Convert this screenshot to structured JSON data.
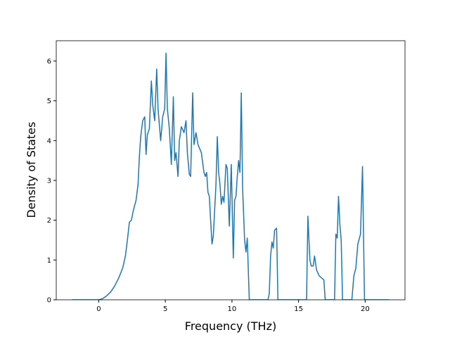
{
  "chart_data": {
    "type": "line",
    "x_label": "Frequency (THz)",
    "y_label": "Density of States",
    "x": [
      -2,
      0,
      0.3,
      0.6,
      0.9,
      1.2,
      1.5,
      1.8,
      2.0,
      2.15,
      2.3,
      2.45,
      2.6,
      2.8,
      2.95,
      3.05,
      3.15,
      3.3,
      3.45,
      3.55,
      3.65,
      3.8,
      3.95,
      4.05,
      4.2,
      4.35,
      4.45,
      4.65,
      4.8,
      4.95,
      5.05,
      5.15,
      5.3,
      5.45,
      5.6,
      5.7,
      5.8,
      5.95,
      6.05,
      6.2,
      6.4,
      6.55,
      6.65,
      6.8,
      6.9,
      7.05,
      7.15,
      7.3,
      7.45,
      7.7,
      7.9,
      8.0,
      8.1,
      8.2,
      8.3,
      8.5,
      8.6,
      8.8,
      8.9,
      9.0,
      9.1,
      9.2,
      9.3,
      9.4,
      9.55,
      9.65,
      9.8,
      9.95,
      10.1,
      10.2,
      10.3,
      10.4,
      10.5,
      10.6,
      10.7,
      10.8,
      10.95,
      11.05,
      11.15,
      11.3,
      12.7,
      12.8,
      12.9,
      13.0,
      13.1,
      13.2,
      13.35,
      13.45,
      15.4,
      15.6,
      15.7,
      15.85,
      15.95,
      16.1,
      16.2,
      16.35,
      16.55,
      16.9,
      17.0,
      17.7,
      17.8,
      17.9,
      18.0,
      18.1,
      18.2,
      18.3,
      19.0,
      19.15,
      19.3,
      19.45,
      19.65,
      19.8,
      19.95,
      21.8
    ],
    "series": [
      {
        "name": "DOS",
        "color": "#1f77b4",
        "values": [
          0,
          0,
          0.03,
          0.1,
          0.2,
          0.35,
          0.55,
          0.8,
          1.1,
          1.5,
          1.95,
          2.0,
          2.25,
          2.5,
          2.9,
          3.6,
          4.1,
          4.5,
          4.6,
          3.65,
          4.15,
          4.3,
          5.5,
          4.9,
          4.5,
          5.8,
          4.8,
          4.0,
          4.6,
          4.8,
          6.2,
          4.8,
          4.3,
          3.4,
          5.1,
          3.5,
          3.7,
          3.1,
          4.0,
          4.35,
          4.2,
          4.5,
          3.7,
          3.15,
          3.1,
          5.2,
          3.9,
          4.2,
          3.9,
          3.7,
          3.2,
          3.1,
          3.2,
          2.7,
          2.6,
          1.4,
          1.6,
          2.9,
          4.1,
          3.2,
          2.9,
          2.4,
          2.6,
          2.45,
          3.4,
          3.3,
          1.85,
          3.4,
          1.05,
          2.5,
          2.6,
          3.1,
          3.5,
          3.2,
          5.2,
          2.8,
          1.5,
          1.2,
          1.55,
          0,
          0,
          0.15,
          1.1,
          1.45,
          1.3,
          1.75,
          1.8,
          0,
          0,
          0,
          2.1,
          1.0,
          0.85,
          0.85,
          1.1,
          0.75,
          0.6,
          0.5,
          0,
          0,
          1.65,
          1.55,
          2.6,
          1.9,
          1.5,
          0,
          0,
          0.6,
          0.8,
          1.4,
          1.65,
          3.35,
          0,
          0
        ]
      }
    ],
    "xlim": [
      -3.19,
      22.99
    ],
    "xticks": [
      0,
      5,
      10,
      15,
      20
    ],
    "ylim": [
      0,
      6.51
    ],
    "yticks": [
      0,
      1,
      2,
      3,
      4,
      5,
      6
    ]
  }
}
